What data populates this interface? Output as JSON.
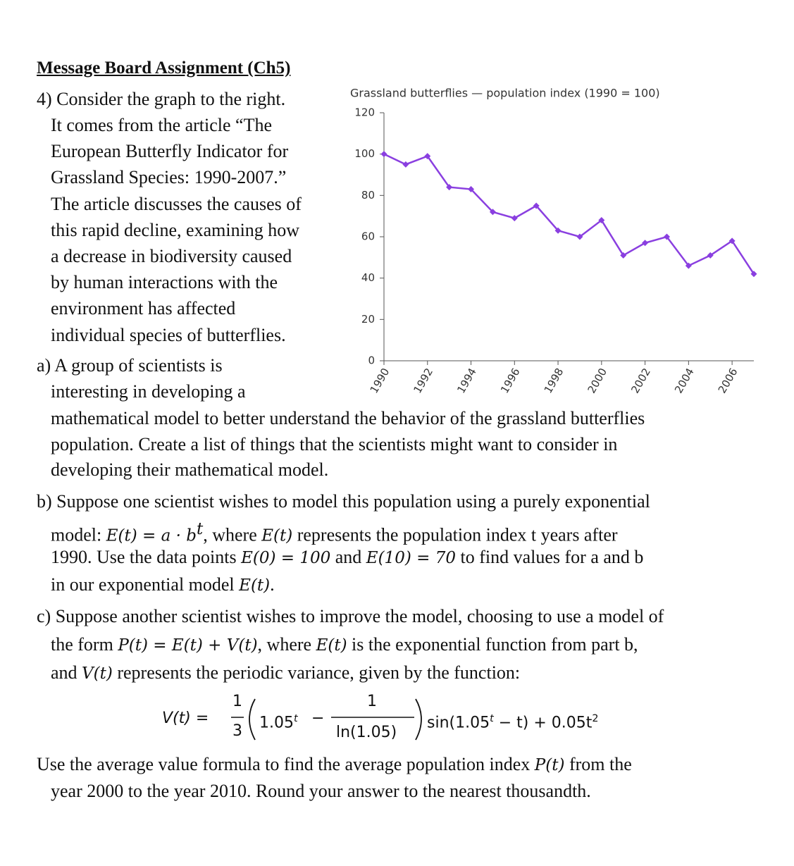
{
  "header": {
    "title": "Message Board Assignment (Ch5)"
  },
  "question": {
    "lines": [
      "4) Consider the graph to the right.",
      "It comes from the article “The",
      "European Butterfly Indicator for",
      "Grassland Species: 1990-2007.”",
      "The article discusses the causes of",
      "this rapid decline, examining how",
      "a decrease in biodiversity caused",
      "by human interactions with the",
      "environment has affected",
      "individual species of butterflies."
    ]
  },
  "part_a": {
    "lines": [
      "a) A group of scientists is",
      "interesting in developing a",
      "mathematical model to better understand the behavior of the grassland butterflies",
      "population.  Create a list of things that the scientists might want to consider in",
      "developing their mathematical model."
    ]
  },
  "part_b": {
    "lines": [
      "b) Suppose one scientist wishes to model this population using a purely exponential",
      [
        "model: ",
        "E(t) = a · b",
        "t",
        ", where ",
        "E(t)",
        " represents the population index t years after"
      ],
      [
        "1990.  Use the data points ",
        "E(0) = 100",
        " and ",
        "E(10) = 70",
        " to find values for a and b"
      ],
      [
        "in our exponential model ",
        "E(t)",
        "."
      ]
    ]
  },
  "part_c": {
    "lines": [
      "c) Suppose another scientist wishes to improve the model, choosing to use a model of",
      [
        "the form ",
        "P(t) = E(t) + V(t)",
        ", where ",
        "E(t)",
        " is the exponential function from part b,"
      ],
      [
        "and ",
        "V(t)",
        " represents the periodic variance, given by the function:"
      ]
    ]
  },
  "formula": {
    "lhs": "V(t) =",
    "frac1_num": "1",
    "frac1_den": "3",
    "base": "1.05",
    "exp": "t",
    "minus": "−",
    "frac2_num": "1",
    "frac2_den": "ln(1.05)",
    "sin": "sin(1.05",
    "sin_exp": "t",
    "tail": " − t) + 0.05t",
    "tail_exp": "2"
  },
  "closing": {
    "lines": [
      [
        "Use the average value formula to find the average population index ",
        "P(t)",
        " from the"
      ],
      "year 2000 to the year 2010.  Round your answer to the nearest thousandth."
    ]
  },
  "chart_data": {
    "type": "line",
    "title": "Grassland butterflies — population index (1990 = 100)",
    "x": [
      1990,
      1991,
      1992,
      1993,
      1994,
      1995,
      1996,
      1997,
      1998,
      1999,
      2000,
      2001,
      2002,
      2003,
      2004,
      2005,
      2006,
      2007
    ],
    "values": [
      100,
      95,
      99,
      84,
      83,
      72,
      69,
      75,
      63,
      60,
      68,
      51,
      57,
      60,
      46,
      51,
      58,
      42
    ],
    "color": "#8a3fe0",
    "xlim": [
      1990,
      2007
    ],
    "ylim": [
      0,
      120
    ],
    "xticks": [
      1990,
      1992,
      1994,
      1996,
      1998,
      2000,
      2002,
      2004,
      2006
    ],
    "yticks": [
      0,
      20,
      40,
      60,
      80,
      100,
      120
    ]
  }
}
